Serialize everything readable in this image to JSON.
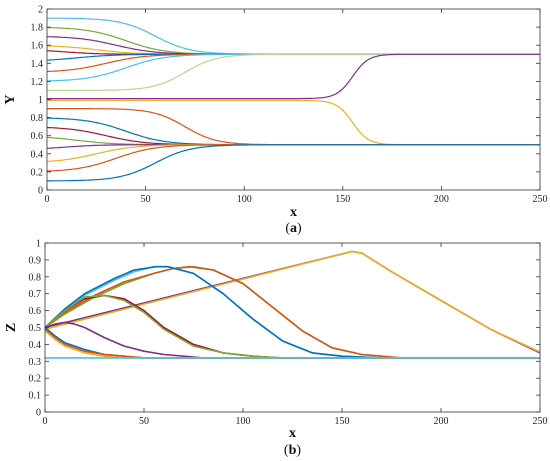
{
  "chart_data": [
    {
      "panel": "a",
      "type": "line",
      "caption_prefix": "(",
      "caption_letter": "a",
      "caption_suffix": ")",
      "xlabel": "x",
      "ylabel": "Y",
      "xlim": [
        0,
        250
      ],
      "ylim": [
        0,
        2
      ],
      "xticks": [
        0,
        50,
        100,
        150,
        200,
        250
      ],
      "yticks": [
        0,
        0.2,
        0.4,
        0.6,
        0.8,
        1,
        1.2,
        1.4,
        1.6,
        1.8,
        2
      ],
      "grid": false,
      "series": [
        {
          "color": "#4DBEEE",
          "start": 1.9,
          "end": 1.5,
          "center": 55,
          "width": 9
        },
        {
          "color": "#77AC30",
          "start": 1.8,
          "end": 1.5,
          "center": 40,
          "width": 10
        },
        {
          "color": "#7E2F8E",
          "start": 1.7,
          "end": 1.5,
          "center": 35,
          "width": 10
        },
        {
          "color": "#EDB120",
          "start": 1.6,
          "end": 1.5,
          "center": 25,
          "width": 10
        },
        {
          "color": "#A2142F",
          "start": 1.55,
          "end": 1.5,
          "center": 10,
          "width": 8
        },
        {
          "color": "#0072BD",
          "start": 1.42,
          "end": 1.5,
          "center": 15,
          "width": 10
        },
        {
          "color": "#D95319",
          "start": 1.3,
          "end": 1.5,
          "center": 30,
          "width": 10
        },
        {
          "color": "#4DBEEE",
          "start": 1.2,
          "end": 1.5,
          "center": 40,
          "width": 10
        },
        {
          "color": "#B5D98A",
          "start": 1.1,
          "end": 1.5,
          "center": 70,
          "width": 8
        },
        {
          "color": "#7E2F8E",
          "start": 1.01,
          "end": 1.5,
          "center": 155,
          "width": 4
        },
        {
          "color": "#EDB120",
          "start": 0.99,
          "end": 0.5,
          "center": 155,
          "width": 4
        },
        {
          "color": "#D95319",
          "start": 0.9,
          "end": 0.5,
          "center": 70,
          "width": 8
        },
        {
          "color": "#0072BD",
          "start": 0.8,
          "end": 0.5,
          "center": 40,
          "width": 10
        },
        {
          "color": "#A2142F",
          "start": 0.7,
          "end": 0.5,
          "center": 30,
          "width": 10
        },
        {
          "color": "#77AC30",
          "start": 0.6,
          "end": 0.5,
          "center": 15,
          "width": 10
        },
        {
          "color": "#7E2F8E",
          "start": 0.45,
          "end": 0.5,
          "center": 10,
          "width": 8
        },
        {
          "color": "#EDB120",
          "start": 0.3,
          "end": 0.5,
          "center": 25,
          "width": 10
        },
        {
          "color": "#D95319",
          "start": 0.2,
          "end": 0.5,
          "center": 35,
          "width": 10
        },
        {
          "color": "#0072BD",
          "start": 0.1,
          "end": 0.5,
          "center": 55,
          "width": 9
        }
      ]
    },
    {
      "panel": "b",
      "type": "line",
      "caption_prefix": "(",
      "caption_letter": "b",
      "caption_suffix": ")",
      "xlabel": "x",
      "ylabel": "Z",
      "xlim": [
        0,
        250
      ],
      "ylim": [
        0,
        1
      ],
      "xticks": [
        0,
        50,
        100,
        150,
        200,
        250
      ],
      "yticks": [
        0,
        0.1,
        0.2,
        0.3,
        0.4,
        0.5,
        0.6,
        0.7,
        0.8,
        0.9,
        1
      ],
      "grid": false,
      "series": [
        {
          "color": "#7E2F8E",
          "x": [
            0,
            155,
            160,
            175,
            200,
            225,
            250
          ],
          "y": [
            0.5,
            0.95,
            0.94,
            0.83,
            0.66,
            0.49,
            0.35
          ]
        },
        {
          "color": "#EDB120",
          "x": [
            0,
            155,
            160,
            175,
            200,
            225,
            250
          ],
          "y": [
            0.49,
            0.95,
            0.94,
            0.83,
            0.66,
            0.49,
            0.355
          ]
        },
        {
          "color": "#77AC30",
          "x": [
            0,
            10,
            25,
            40,
            55,
            65,
            75,
            85,
            100,
            115,
            130,
            145,
            160,
            180,
            200,
            250
          ],
          "y": [
            0.5,
            0.58,
            0.68,
            0.76,
            0.82,
            0.85,
            0.86,
            0.84,
            0.76,
            0.62,
            0.48,
            0.38,
            0.34,
            0.32,
            0.32,
            0.32
          ]
        },
        {
          "color": "#D95319",
          "x": [
            0,
            10,
            25,
            40,
            55,
            65,
            73,
            85,
            100,
            115,
            130,
            145,
            160,
            180,
            200,
            250
          ],
          "y": [
            0.5,
            0.59,
            0.69,
            0.77,
            0.82,
            0.85,
            0.86,
            0.84,
            0.76,
            0.62,
            0.48,
            0.38,
            0.34,
            0.32,
            0.32,
            0.32
          ]
        },
        {
          "color": "#4DBEEE",
          "x": [
            0,
            10,
            20,
            35,
            45,
            55,
            62,
            75,
            90,
            105,
            120,
            135,
            150,
            170,
            200,
            250
          ],
          "y": [
            0.5,
            0.6,
            0.69,
            0.78,
            0.83,
            0.86,
            0.86,
            0.82,
            0.7,
            0.55,
            0.42,
            0.35,
            0.33,
            0.32,
            0.32,
            0.32
          ]
        },
        {
          "color": "#0072BD",
          "x": [
            0,
            10,
            20,
            35,
            45,
            56,
            62,
            75,
            90,
            105,
            120,
            135,
            150,
            170,
            200,
            250
          ],
          "y": [
            0.5,
            0.61,
            0.7,
            0.79,
            0.84,
            0.86,
            0.86,
            0.82,
            0.7,
            0.55,
            0.42,
            0.35,
            0.33,
            0.32,
            0.32,
            0.32
          ]
        },
        {
          "color": "#A2142F",
          "x": [
            0,
            10,
            20,
            30,
            40,
            50,
            60,
            75,
            90,
            105,
            120,
            140,
            170,
            250
          ],
          "y": [
            0.5,
            0.6,
            0.67,
            0.69,
            0.67,
            0.6,
            0.5,
            0.4,
            0.35,
            0.33,
            0.32,
            0.32,
            0.32,
            0.32
          ]
        },
        {
          "color": "#77AC30",
          "x": [
            0,
            10,
            20,
            30,
            40,
            50,
            60,
            75,
            90,
            105,
            120,
            140,
            170,
            250
          ],
          "y": [
            0.5,
            0.6,
            0.68,
            0.69,
            0.66,
            0.59,
            0.49,
            0.39,
            0.35,
            0.33,
            0.32,
            0.32,
            0.32,
            0.32
          ]
        },
        {
          "color": "#7E2F8E",
          "x": [
            0,
            5,
            10,
            15,
            20,
            30,
            40,
            50,
            60,
            70,
            80,
            100,
            250
          ],
          "y": [
            0.5,
            0.52,
            0.53,
            0.52,
            0.5,
            0.44,
            0.39,
            0.36,
            0.34,
            0.33,
            0.32,
            0.32,
            0.32
          ]
        },
        {
          "color": "#0072BD",
          "x": [
            0,
            5,
            10,
            20,
            30,
            40,
            50,
            60,
            80,
            250
          ],
          "y": [
            0.5,
            0.45,
            0.41,
            0.37,
            0.34,
            0.33,
            0.32,
            0.32,
            0.32,
            0.32
          ]
        },
        {
          "color": "#D95319",
          "x": [
            0,
            5,
            10,
            20,
            30,
            40,
            50,
            60,
            80,
            250
          ],
          "y": [
            0.49,
            0.44,
            0.4,
            0.36,
            0.34,
            0.33,
            0.32,
            0.32,
            0.32,
            0.32
          ]
        },
        {
          "color": "#EDB120",
          "x": [
            0,
            5,
            10,
            20,
            30,
            40,
            50,
            60,
            80,
            250
          ],
          "y": [
            0.48,
            0.43,
            0.39,
            0.35,
            0.33,
            0.32,
            0.32,
            0.32,
            0.32,
            0.32
          ]
        },
        {
          "color": "#4DBEEE",
          "x": [
            0,
            60,
            250
          ],
          "y": [
            0.32,
            0.32,
            0.32
          ]
        }
      ]
    }
  ]
}
